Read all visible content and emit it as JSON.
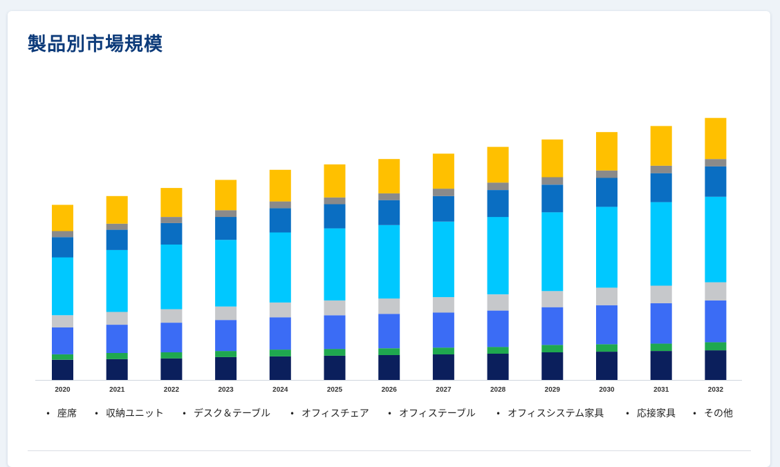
{
  "title": "製品別市場規模",
  "chart_data": {
    "type": "bar",
    "stacked": true,
    "title": "製品別市場規模",
    "xlabel": "",
    "ylabel": "",
    "y_axis_shown": false,
    "grid": false,
    "legend_position": "bottom",
    "categories": [
      "2020",
      "2021",
      "2022",
      "2023",
      "2024",
      "2025",
      "2026",
      "2027",
      "2028",
      "2029",
      "2030",
      "2031",
      "2032"
    ],
    "series": [
      {
        "name": "座席",
        "color": "#0b1f5c",
        "values": [
          30,
          31,
          32,
          34,
          35,
          36,
          37,
          38,
          39,
          41,
          42,
          43,
          44
        ]
      },
      {
        "name": "収納ユニット",
        "color": "#1fa84f",
        "values": [
          8,
          9,
          9,
          9,
          10,
          10,
          10,
          10,
          10,
          11,
          11,
          11,
          12
        ]
      },
      {
        "name": "デスク＆テーブル",
        "color": "#3b6cf5",
        "values": [
          40,
          42,
          44,
          46,
          48,
          50,
          51,
          52,
          54,
          56,
          58,
          60,
          62
        ]
      },
      {
        "name": "オフィスチェア",
        "color": "#c6c8cb",
        "values": [
          18,
          19,
          20,
          20,
          22,
          22,
          23,
          23,
          24,
          24,
          26,
          26,
          27
        ]
      },
      {
        "name": "オフィステーブル",
        "color": "#00c8ff",
        "values": [
          86,
          92,
          96,
          99,
          104,
          107,
          109,
          112,
          115,
          117,
          120,
          124,
          127
        ]
      },
      {
        "name": "オフィスシステム家具",
        "color": "#0a6ec2",
        "values": [
          30,
          30,
          32,
          34,
          36,
          36,
          37,
          38,
          40,
          41,
          43,
          43,
          45
        ]
      },
      {
        "name": "応接家具",
        "color": "#8a8a8a",
        "values": [
          9,
          9,
          9,
          10,
          10,
          10,
          10,
          11,
          11,
          11,
          11,
          11,
          11
        ]
      },
      {
        "name": "その他",
        "color": "#ffc000",
        "values": [
          39,
          41,
          43,
          45,
          47,
          49,
          51,
          52,
          53,
          56,
          57,
          59,
          61
        ]
      }
    ],
    "ylim": [
      0,
      400
    ]
  },
  "legend": [
    {
      "label": "座席",
      "bullet": "•"
    },
    {
      "label": "収納ユニット",
      "bullet": "•"
    },
    {
      "label": "デスク＆テーブル",
      "bullet": "•"
    },
    {
      "label": "オフィスチェア",
      "bullet": "•"
    },
    {
      "label": "オフィステーブル",
      "bullet": "•"
    },
    {
      "label": "オフィスシステム家具",
      "bullet": "•"
    },
    {
      "label": "応接家具",
      "bullet": "•"
    },
    {
      "label": "その他",
      "bullet": "•"
    }
  ]
}
